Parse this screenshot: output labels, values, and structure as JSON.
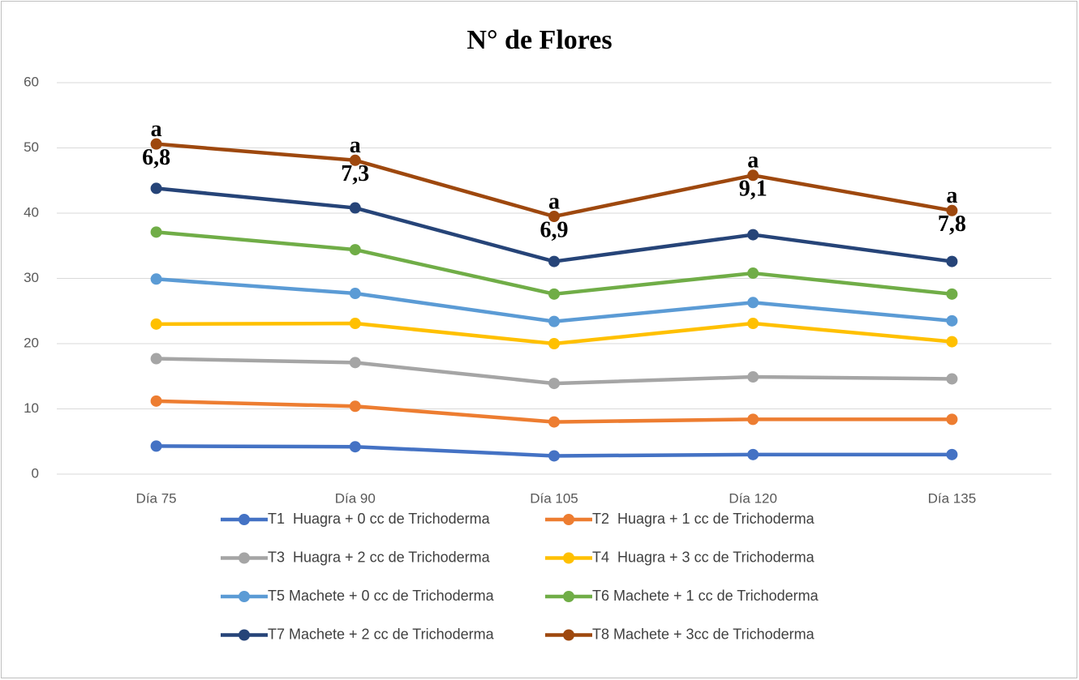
{
  "chart_data": {
    "type": "line",
    "stacked": true,
    "title": "N° de Flores",
    "categories": [
      "Día 75",
      "Día 90",
      "Día 105",
      "Día 120",
      "Día 135"
    ],
    "ylim": [
      0,
      60
    ],
    "yticks": [
      0,
      10,
      20,
      30,
      40,
      50,
      60
    ],
    "grid": true,
    "legend": "bottom",
    "annotations": [
      "a",
      "a",
      "a",
      "a",
      "a"
    ],
    "series": [
      {
        "name": "T1  Huagra + 0 cc de Trichoderma",
        "color": "#4472c4",
        "values": [
          4.3,
          4.2,
          2.8,
          3.0,
          3.0
        ]
      },
      {
        "name": "T2  Huagra + 1 cc de Trichoderma",
        "color": "#ed7d31",
        "values": [
          6.9,
          6.2,
          5.2,
          5.4,
          5.4
        ]
      },
      {
        "name": "T3  Huagra + 2 cc de Trichoderma",
        "color": "#a5a5a5",
        "values": [
          6.5,
          6.7,
          5.9,
          6.5,
          6.2
        ]
      },
      {
        "name": "T4  Huagra + 3 cc de Trichoderma",
        "color": "#ffc000",
        "values": [
          5.3,
          6.0,
          6.1,
          8.2,
          5.7
        ]
      },
      {
        "name": "T5 Machete + 0 cc de Trichoderma",
        "color": "#5b9bd5",
        "values": [
          6.9,
          4.6,
          3.4,
          3.2,
          3.2
        ]
      },
      {
        "name": "T6 Machete + 1 cc de Trichoderma",
        "color": "#70ad47",
        "values": [
          7.2,
          6.7,
          4.2,
          4.5,
          4.1
        ]
      },
      {
        "name": "T7 Machete + 2 cc de Trichoderma",
        "color": "#264478",
        "values": [
          6.7,
          6.4,
          5.0,
          5.9,
          5.0
        ]
      },
      {
        "name": "T8 Machete + 3cc de Trichoderma",
        "color": "#9e480e",
        "values": [
          6.8,
          7.3,
          6.9,
          9.1,
          7.8
        ],
        "value_labels": [
          "6,8",
          "7,3",
          "6,9",
          "9,1",
          "7,8"
        ]
      }
    ]
  }
}
